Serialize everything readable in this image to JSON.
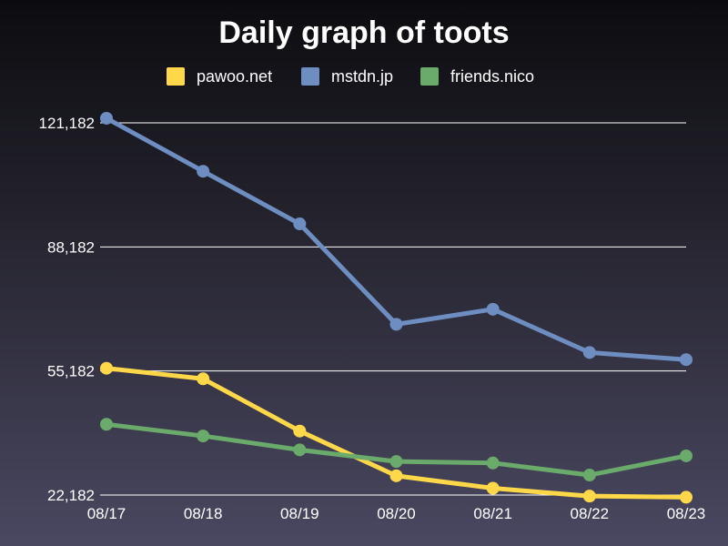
{
  "chart_data": {
    "type": "line",
    "title": "Daily graph of toots",
    "categories": [
      "08/17",
      "08/18",
      "08/19",
      "08/20",
      "08/21",
      "08/22",
      "08/23"
    ],
    "series": [
      {
        "name": "pawoo.net",
        "color": "#ffd84a",
        "values": [
          55900,
          53100,
          39200,
          27300,
          24000,
          21900,
          21600
        ]
      },
      {
        "name": "mstdn.jp",
        "color": "#6e8ec2",
        "values": [
          122400,
          108300,
          94300,
          67600,
          71600,
          60100,
          58200
        ]
      },
      {
        "name": "friends.nico",
        "color": "#6aaa6a",
        "values": [
          41000,
          37900,
          34200,
          31100,
          30700,
          27500,
          32600
        ]
      }
    ],
    "yticks": [
      "22,182",
      "55,182",
      "88,182",
      "121,182"
    ],
    "ytick_values": [
      22182,
      55182,
      88182,
      121182
    ],
    "ylim": [
      22182,
      121182
    ],
    "grid": true,
    "legend": "top"
  }
}
